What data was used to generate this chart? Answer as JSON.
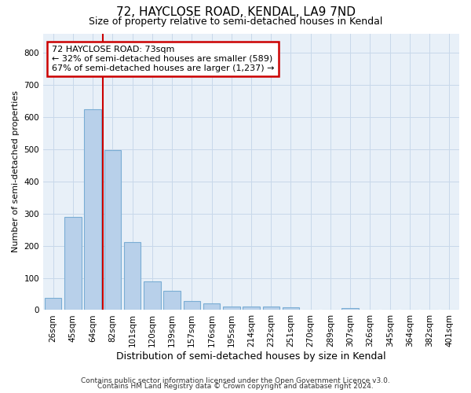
{
  "title": "72, HAYCLOSE ROAD, KENDAL, LA9 7ND",
  "subtitle": "Size of property relative to semi-detached houses in Kendal",
  "xlabel": "Distribution of semi-detached houses by size in Kendal",
  "ylabel": "Number of semi-detached properties",
  "footer_line1": "Contains HM Land Registry data © Crown copyright and database right 2024.",
  "footer_line2": "Contains public sector information licensed under the Open Government Licence v3.0.",
  "bin_labels": [
    "26sqm",
    "45sqm",
    "64sqm",
    "82sqm",
    "101sqm",
    "120sqm",
    "139sqm",
    "157sqm",
    "176sqm",
    "195sqm",
    "214sqm",
    "232sqm",
    "251sqm",
    "270sqm",
    "289sqm",
    "307sqm",
    "326sqm",
    "345sqm",
    "364sqm",
    "382sqm",
    "401sqm"
  ],
  "bin_values": [
    37,
    290,
    625,
    497,
    212,
    88,
    60,
    28,
    20,
    12,
    10,
    10,
    8,
    0,
    0,
    7,
    0,
    0,
    0,
    0,
    0
  ],
  "bar_color": "#b8d0ea",
  "bar_edge_color": "#7aadd4",
  "annotation_title": "72 HAYCLOSE ROAD: 73sqm",
  "annotation_line1": "← 32% of semi-detached houses are smaller (589)",
  "annotation_line2": "67% of semi-detached houses are larger (1,237) →",
  "annotation_box_facecolor": "#ffffff",
  "annotation_box_edgecolor": "#cc0000",
  "red_line_bin_index": 3,
  "ylim": [
    0,
    860
  ],
  "yticks": [
    0,
    100,
    200,
    300,
    400,
    500,
    600,
    700,
    800
  ],
  "grid_color": "#c8d8ea",
  "background_color": "#e8f0f8",
  "title_fontsize": 11,
  "subtitle_fontsize": 9,
  "ylabel_fontsize": 8,
  "xlabel_fontsize": 9,
  "tick_fontsize": 7.5,
  "annotation_fontsize": 8,
  "footer_fontsize": 6.5
}
